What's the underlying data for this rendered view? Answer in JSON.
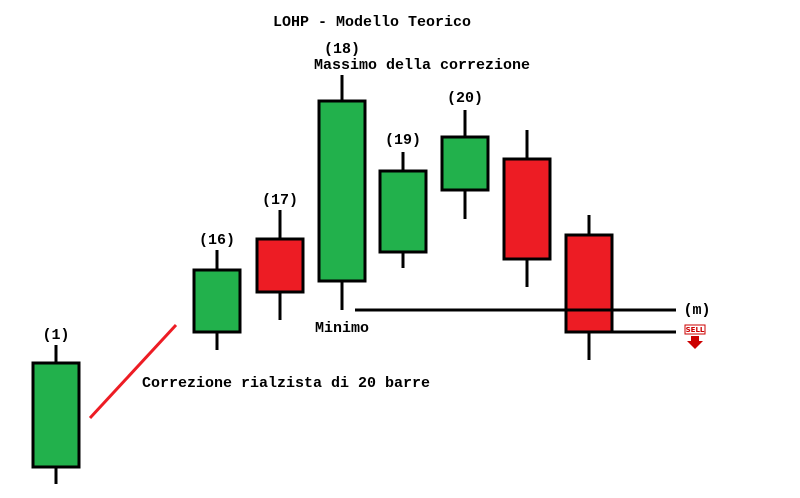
{
  "title": "LOHP - Modello Teorico",
  "labels": {
    "bar_1": "(1)",
    "bar_16": "(16)",
    "bar_17": "(17)",
    "bar_18": "(18)",
    "bar_19": "(19)",
    "bar_20": "(20)"
  },
  "annotations": {
    "high": "Massimo della correzione",
    "low": "Minimo",
    "level": "(m)",
    "correction": "Correzione rialzista di 20 barre",
    "sell": "SELL"
  }
}
